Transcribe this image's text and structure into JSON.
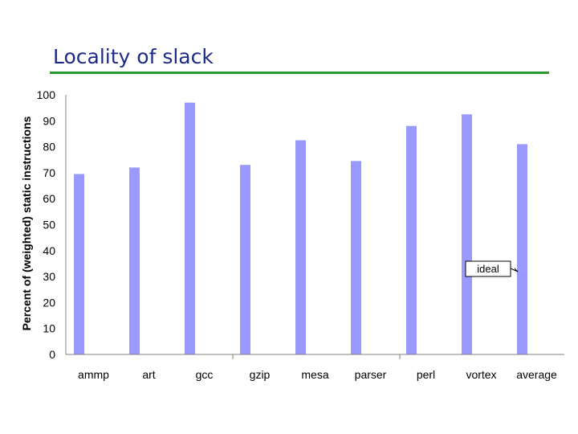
{
  "slide": {
    "title": "Locality of slack"
  },
  "chart_data": {
    "type": "bar",
    "title": "",
    "xlabel": "",
    "ylabel": "Percent of (weighted) static instructions",
    "ylim": [
      0,
      100
    ],
    "yticks": [
      0,
      10,
      20,
      30,
      40,
      50,
      60,
      70,
      80,
      90,
      100
    ],
    "grid": false,
    "categories": [
      "ammp",
      "art",
      "gcc",
      "gzip",
      "mesa",
      "parser",
      "perl",
      "vortex",
      "average"
    ],
    "series": [
      {
        "values": [
          69.5,
          72,
          97,
          73,
          82.5,
          74.5,
          88,
          92.5,
          81
        ]
      }
    ],
    "bar_color": "#9999ff",
    "annotations": [
      {
        "text": "ideal"
      }
    ]
  }
}
